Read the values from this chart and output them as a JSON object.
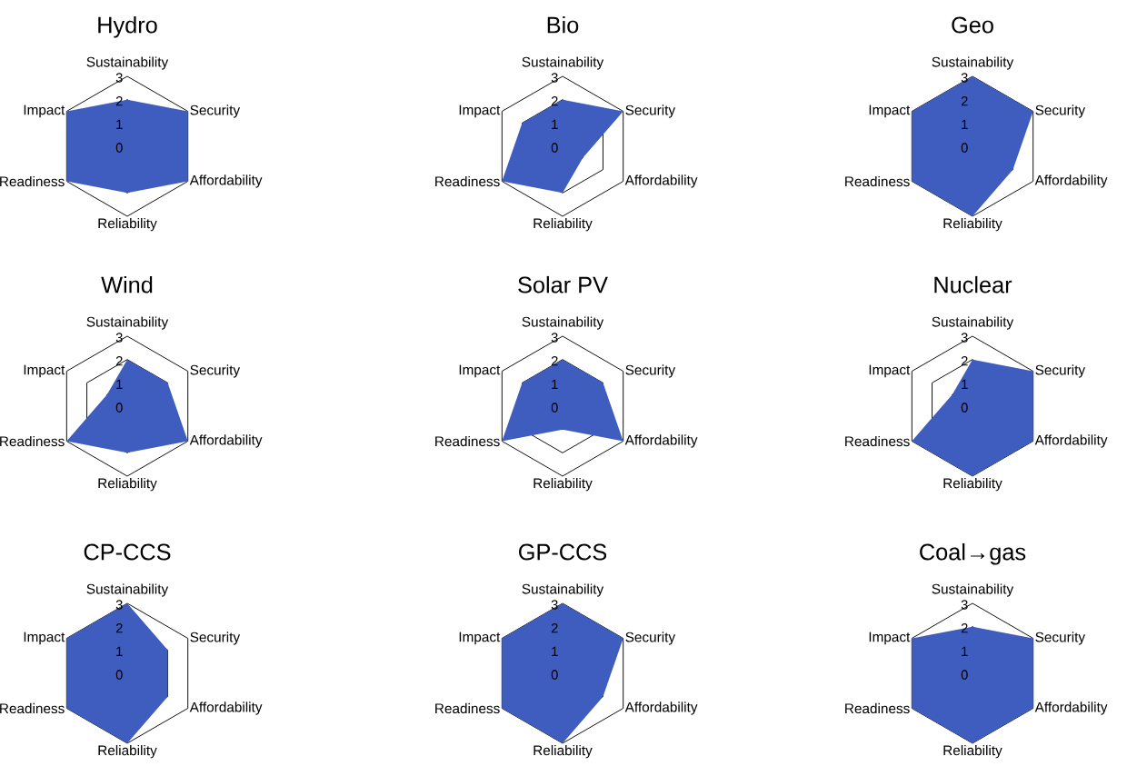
{
  "chart_data": [
    {
      "type": "radar",
      "title": "Hydro",
      "categories": [
        "Sustainability",
        "Security",
        "Affordability",
        "Reliability",
        "Readiness",
        "Impact"
      ],
      "series": [
        {
          "color": "#3f5cbf",
          "values": [
            2,
            3,
            3,
            2,
            3,
            3
          ]
        }
      ],
      "ylim": [
        0,
        3
      ],
      "yticks": [
        0,
        1,
        2,
        3
      ],
      "grid": true
    },
    {
      "type": "radar",
      "title": "Bio",
      "categories": [
        "Sustainability",
        "Security",
        "Affordability",
        "Reliability",
        "Readiness",
        "Impact"
      ],
      "series": [
        {
          "color": "#3f5cbf",
          "values": [
            2,
            3,
            1,
            2,
            3,
            2
          ]
        }
      ],
      "ylim": [
        0,
        3
      ],
      "yticks": [
        0,
        1,
        2,
        3
      ],
      "grid": true
    },
    {
      "type": "radar",
      "title": "Geo",
      "categories": [
        "Sustainability",
        "Security",
        "Affordability",
        "Reliability",
        "Readiness",
        "Impact"
      ],
      "series": [
        {
          "color": "#3f5cbf",
          "values": [
            3,
            3,
            2,
            3,
            3,
            3
          ]
        }
      ],
      "ylim": [
        0,
        3
      ],
      "yticks": [
        0,
        1,
        2,
        3
      ],
      "grid": true
    },
    {
      "type": "radar",
      "title": "Wind",
      "categories": [
        "Sustainability",
        "Security",
        "Affordability",
        "Reliability",
        "Readiness",
        "Impact"
      ],
      "series": [
        {
          "color": "#3f5cbf",
          "values": [
            2,
            2,
            3,
            2,
            3,
            1
          ]
        }
      ],
      "ylim": [
        0,
        3
      ],
      "yticks": [
        0,
        1,
        2,
        3
      ],
      "grid": true
    },
    {
      "type": "radar",
      "title": "Solar PV",
      "categories": [
        "Sustainability",
        "Security",
        "Affordability",
        "Reliability",
        "Readiness",
        "Impact"
      ],
      "series": [
        {
          "color": "#3f5cbf",
          "values": [
            2,
            2,
            3,
            1,
            3,
            2
          ]
        }
      ],
      "ylim": [
        0,
        3
      ],
      "yticks": [
        0,
        1,
        2,
        3
      ],
      "grid": true
    },
    {
      "type": "radar",
      "title": "Nuclear",
      "categories": [
        "Sustainability",
        "Security",
        "Affordability",
        "Reliability",
        "Readiness",
        "Impact"
      ],
      "series": [
        {
          "color": "#3f5cbf",
          "values": [
            2,
            3,
            3,
            3,
            3,
            1
          ]
        }
      ],
      "ylim": [
        0,
        3
      ],
      "yticks": [
        0,
        1,
        2,
        3
      ],
      "grid": true
    },
    {
      "type": "radar",
      "title": "CP-CCS",
      "categories": [
        "Sustainability",
        "Security",
        "Affordability",
        "Reliability",
        "Readiness",
        "Impact"
      ],
      "series": [
        {
          "color": "#3f5cbf",
          "values": [
            3,
            2,
            2,
            3,
            3,
            3
          ]
        }
      ],
      "ylim": [
        0,
        3
      ],
      "yticks": [
        0,
        1,
        2,
        3
      ],
      "grid": true
    },
    {
      "type": "radar",
      "title": "GP-CCS",
      "categories": [
        "Sustainability",
        "Security",
        "Affordability",
        "Reliability",
        "Readiness",
        "Impact"
      ],
      "series": [
        {
          "color": "#3f5cbf",
          "values": [
            3,
            3,
            2,
            3,
            3,
            3
          ]
        }
      ],
      "ylim": [
        0,
        3
      ],
      "yticks": [
        0,
        1,
        2,
        3
      ],
      "grid": true
    },
    {
      "type": "radar",
      "title": "Coal→gas",
      "categories": [
        "Sustainability",
        "Security",
        "Affordability",
        "Reliability",
        "Readiness",
        "Impact"
      ],
      "series": [
        {
          "color": "#3f5cbf",
          "values": [
            2,
            3,
            3,
            3,
            3,
            3
          ]
        }
      ],
      "ylim": [
        0,
        3
      ],
      "yticks": [
        0,
        1,
        2,
        3
      ],
      "grid": true
    }
  ]
}
